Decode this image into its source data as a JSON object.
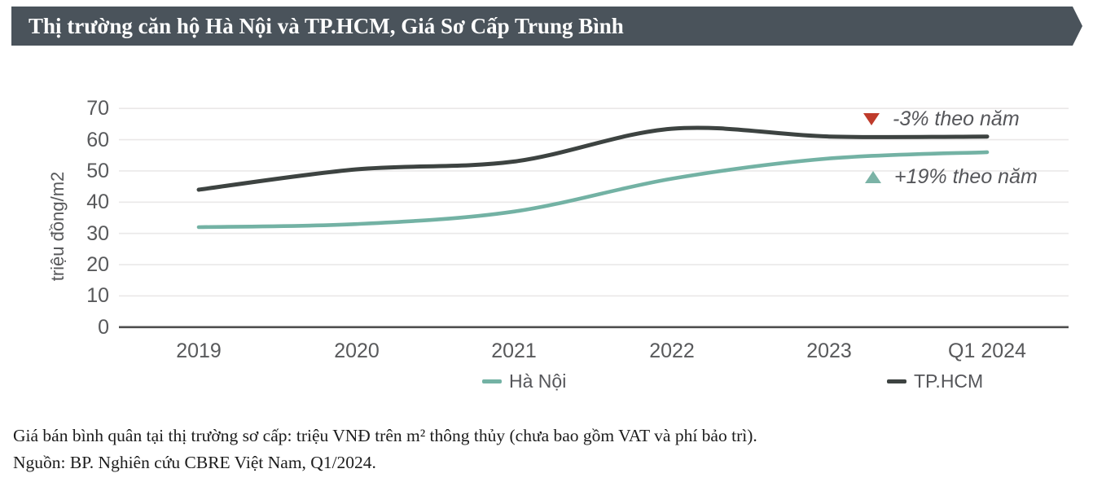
{
  "header": {
    "title": "Thị trường căn hộ Hà Nội và TP.HCM, Giá Sơ Cấp Trung Bình"
  },
  "chart_data": {
    "type": "line",
    "categories": [
      "2019",
      "2020",
      "2021",
      "2022",
      "2023",
      "Q1 2024"
    ],
    "series": [
      {
        "name": "Hà Nội",
        "color": "#73b2a4",
        "values": [
          32,
          33,
          37,
          47.5,
          54,
          56
        ]
      },
      {
        "name": "TP.HCM",
        "color": "#3d4341",
        "values": [
          44,
          50.5,
          53,
          63.5,
          61,
          61
        ]
      }
    ],
    "ylabel": "triệu đồng/m2",
    "xlabel": "",
    "yticks": [
      "70",
      "60",
      "50",
      "40",
      "30",
      "20",
      "10",
      "0"
    ],
    "ylim": [
      0,
      70
    ],
    "grid": true,
    "legend_position": "bottom",
    "annotations": [
      {
        "marker": "down-triangle-icon",
        "color": "#bf3b2b",
        "label": "-3% theo năm",
        "series": "TP.HCM"
      },
      {
        "marker": "up-triangle-icon",
        "color": "#7bb3a6",
        "label": "+19% theo năm",
        "series": "Hà Nội"
      }
    ]
  },
  "footer": {
    "note": "Giá bán bình quân tại thị trường sơ cấp: triệu VNĐ trên m² thông thủy (chưa bao gồm VAT và phí bảo trì).",
    "source": "Nguồn: BP. Nghiên cứu CBRE Việt Nam, Q1/2024."
  }
}
